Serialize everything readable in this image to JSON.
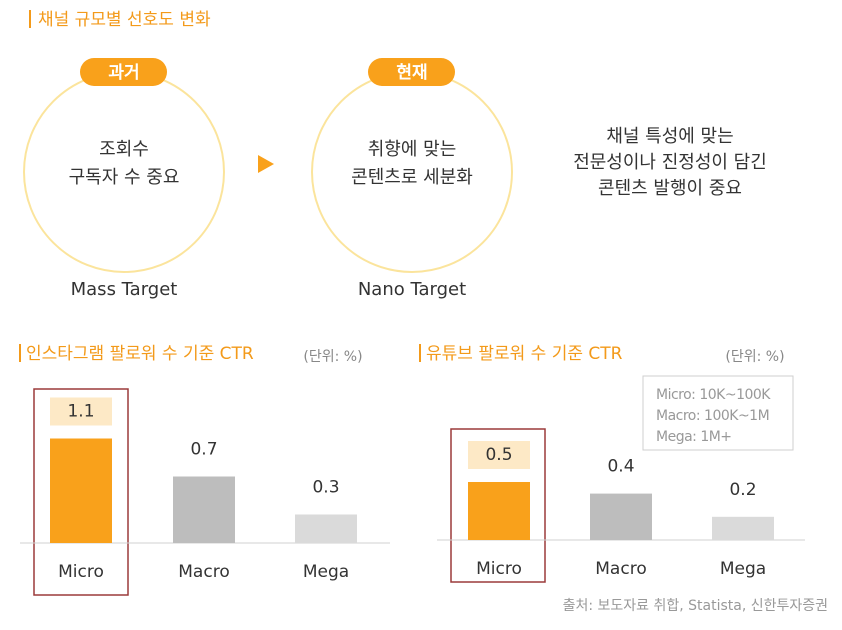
{
  "title": "채널 규모별 선호도 변화",
  "stages": [
    {
      "label": "과거",
      "lines": [
        "조회수",
        "구독자 수 중요"
      ],
      "caption": "Mass Target"
    },
    {
      "label": "현재",
      "lines": [
        "취향에 맞는",
        "콘텐츠로 세분화"
      ],
      "caption": "Nano Target"
    }
  ],
  "note": [
    "채널 특성에 맞는",
    "전문성이나 진정성이 담긴",
    "콘텐츠 발행이 중요"
  ],
  "chart_data": [
    {
      "type": "bar",
      "title": "인스타그램 팔로워 수 기준 CTR",
      "subtitle": "(단위: %)",
      "categories": [
        "Micro",
        "Macro",
        "Mega"
      ],
      "values": [
        1.1,
        0.7,
        0.3
      ],
      "colors": [
        "#f9a11b",
        "#bdbdbd",
        "#dadada"
      ]
    },
    {
      "type": "bar",
      "title": "유튜브 팔로워 수 기준 CTR",
      "subtitle": "(단위: %)",
      "categories": [
        "Micro",
        "Macro",
        "Mega"
      ],
      "values": [
        0.5,
        0.4,
        0.2
      ],
      "colors": [
        "#f9a11b",
        "#bdbdbd",
        "#dadada"
      ],
      "notes": [
        "Micro: 10K~100K",
        "Macro: 100K~1M",
        "Mega: 1M+"
      ]
    }
  ],
  "source": "출처: 보도자료 취합,  Statista, 신한투자증권"
}
